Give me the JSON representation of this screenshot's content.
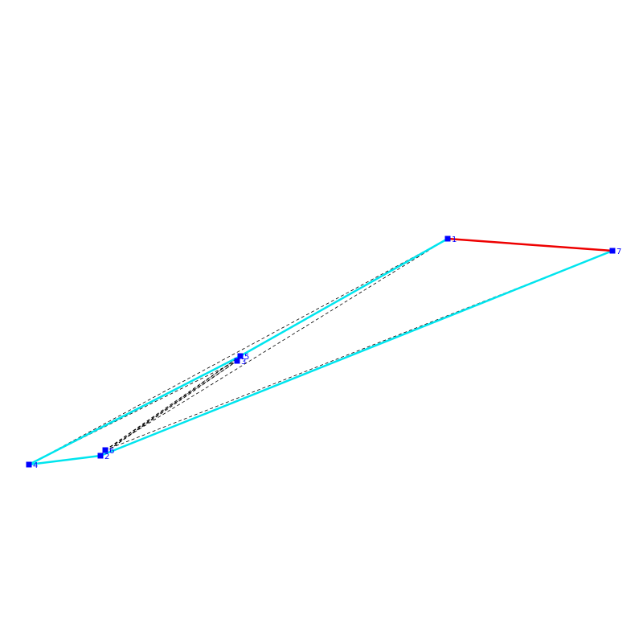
{
  "diagram": {
    "type": "point-graph",
    "colors": {
      "background": "#ffffff",
      "vertex": "#0000ff",
      "hull_edge": "#00e5ee",
      "highlight_edge": "#ee0000",
      "diagonal": "#000000"
    },
    "vertices": [
      {
        "id": "1",
        "label": "1"
      },
      {
        "id": "2",
        "label": "2"
      },
      {
        "id": "3",
        "label": "3"
      },
      {
        "id": "4",
        "label": "4"
      },
      {
        "id": "5",
        "label": "5"
      },
      {
        "id": "6",
        "label": "6"
      },
      {
        "id": "7",
        "label": "7"
      }
    ],
    "hull_edges": [
      [
        "1",
        "5"
      ],
      [
        "5",
        "4"
      ],
      [
        "4",
        "2"
      ],
      [
        "2",
        "7"
      ]
    ],
    "highlight_edges": [
      [
        "1",
        "7"
      ]
    ],
    "dashed_edges": [
      [
        "4",
        "1"
      ],
      [
        "4",
        "3"
      ],
      [
        "4",
        "5"
      ],
      [
        "6",
        "1"
      ],
      [
        "6",
        "3"
      ],
      [
        "6",
        "5"
      ],
      [
        "6",
        "7"
      ],
      [
        "2",
        "3"
      ],
      [
        "2",
        "5"
      ],
      [
        "2",
        "7"
      ]
    ]
  }
}
